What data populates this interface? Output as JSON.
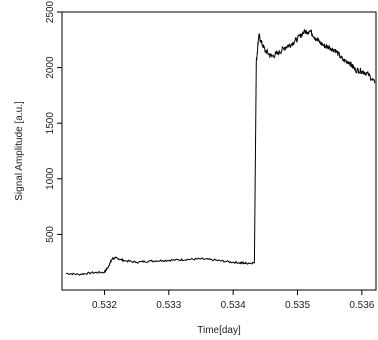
{
  "chart_data": {
    "type": "line",
    "title": "",
    "xlabel": "Time[day]",
    "ylabel": "Signal Amplitude [a.u.]",
    "xlim": [
      0.53134,
      0.53622
    ],
    "ylim": [
      0,
      2500
    ],
    "x_ticks": [
      0.532,
      0.533,
      0.534,
      0.535,
      0.536
    ],
    "x_tick_labels": [
      "0.532",
      "0.533",
      "0.534",
      "0.535",
      "0.536"
    ],
    "y_ticks": [
      500,
      1000,
      1500,
      2000,
      2500
    ],
    "y_tick_labels": [
      "500",
      "1000",
      "1500",
      "2000",
      "2500"
    ],
    "grid": false,
    "legend": "none",
    "line_color": "#000000",
    "series": [
      {
        "x": [
          0.5314,
          0.5316,
          0.5318,
          0.532,
          0.53205,
          0.53212,
          0.53218,
          0.5323,
          0.5325,
          0.5327,
          0.5329,
          0.5331,
          0.5333,
          0.5335,
          0.5337,
          0.5339,
          0.5341,
          0.5342,
          0.53433,
          0.53436,
          0.5344,
          0.53442,
          0.5345,
          0.5346,
          0.5347,
          0.5348,
          0.5349,
          0.535,
          0.5351,
          0.5352,
          0.5353,
          0.5354,
          0.5355,
          0.5356,
          0.5357,
          0.5358,
          0.5359,
          0.536,
          0.5361,
          0.5362
        ],
        "y": [
          150,
          140,
          155,
          160,
          200,
          280,
          290,
          265,
          250,
          260,
          265,
          270,
          275,
          280,
          270,
          255,
          245,
          240,
          245,
          2050,
          2300,
          2250,
          2150,
          2100,
          2130,
          2180,
          2210,
          2260,
          2320,
          2330,
          2250,
          2200,
          2180,
          2150,
          2070,
          2050,
          1980,
          1970,
          1940,
          1860
        ]
      }
    ]
  }
}
